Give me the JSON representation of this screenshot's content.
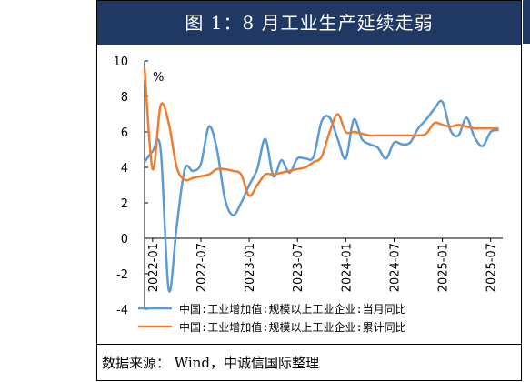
{
  "header": {
    "title": "图 1：8 月工业生产延续走弱"
  },
  "footer": {
    "source": "数据来源： Wind，中诚信国际整理"
  },
  "chart_data": {
    "type": "line",
    "ylabel": "%",
    "ylim": [
      -4,
      10
    ],
    "yticks": [
      -4,
      -2,
      0,
      2,
      4,
      6,
      8,
      10
    ],
    "x_tick_labels": [
      "2022-01",
      "2022-07",
      "2023-01",
      "2023-07",
      "2024-01",
      "2024-07",
      "2025-01",
      "2025-07"
    ],
    "x_tick_months": [
      0,
      6,
      12,
      18,
      24,
      30,
      36,
      42
    ],
    "grid": false,
    "legend": "bottom",
    "series": [
      {
        "name": "中国:工业增加值:规模以上工业企业:当月同比",
        "color": "#5b9bd5",
        "x": [
          -1,
          0,
          1,
          2,
          3,
          4,
          5,
          6,
          7,
          8,
          9,
          10,
          11,
          12,
          13,
          14,
          15,
          16,
          17,
          18,
          19,
          20,
          21,
          22,
          23,
          24,
          25,
          26,
          27,
          28,
          29,
          30,
          31,
          32,
          33,
          34,
          35,
          36,
          37,
          38,
          39,
          40,
          41,
          42,
          43
        ],
        "values": [
          4.3,
          4.9,
          5.0,
          -2.9,
          0.7,
          3.9,
          3.8,
          4.2,
          6.3,
          5.0,
          2.2,
          1.3,
          2.0,
          3.0,
          3.9,
          5.6,
          3.5,
          4.4,
          3.7,
          4.5,
          4.5,
          4.6,
          6.6,
          6.8,
          5.6,
          4.5,
          6.7,
          5.6,
          5.3,
          5.1,
          4.5,
          5.4,
          5.3,
          5.4,
          6.2,
          6.7,
          7.3,
          7.7,
          6.1,
          5.8,
          6.8,
          5.7,
          5.2,
          6.0,
          6.1
        ],
        "show_from": 0,
        "show_to": 43
      },
      {
        "name": "中国:工业增加值:规模以上工业企业:累计同比",
        "color": "#ed7d31",
        "x": [
          -1,
          0,
          1,
          2,
          3,
          4,
          5,
          6,
          7,
          8,
          9,
          10,
          11,
          12,
          13,
          14,
          15,
          16,
          17,
          18,
          19,
          20,
          21,
          22,
          23,
          24,
          25,
          26,
          27,
          28,
          29,
          30,
          31,
          32,
          33,
          34,
          35,
          36,
          37,
          38,
          39,
          40,
          41,
          42,
          43
        ],
        "values": [
          9.6,
          3.9,
          7.5,
          6.5,
          4.0,
          3.3,
          3.4,
          3.5,
          3.6,
          3.9,
          3.9,
          3.8,
          3.6,
          2.4,
          3.0,
          3.6,
          3.6,
          3.7,
          3.8,
          3.9,
          4.0,
          4.3,
          4.6,
          6.0,
          7.0,
          6.0,
          6.0,
          5.9,
          5.8,
          5.8,
          5.8,
          5.8,
          5.8,
          5.8,
          5.8,
          5.9,
          6.5,
          6.4,
          6.3,
          6.4,
          6.3,
          6.2,
          6.2,
          6.2,
          6.2
        ],
        "show_from": 0,
        "show_to": 43
      }
    ]
  }
}
